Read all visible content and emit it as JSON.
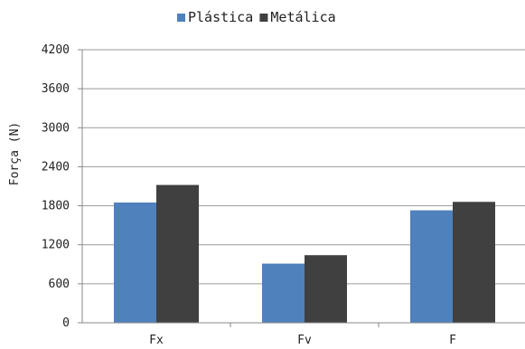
{
  "chart_data": {
    "type": "bar",
    "title": "",
    "xlabel": "",
    "ylabel": "Força (N)",
    "categories": [
      "Fx",
      "Fv",
      "F"
    ],
    "series": [
      {
        "name": "Plástica",
        "color": "#4f81bd",
        "values": [
          1850,
          910,
          1730
        ]
      },
      {
        "name": "Metálica",
        "color": "#404040",
        "values": [
          2120,
          1040,
          1860
        ]
      }
    ],
    "ylim": [
      0,
      4200
    ],
    "yticks": [
      0,
      600,
      1200,
      1800,
      2400,
      3000,
      3600,
      4200
    ],
    "grid": "horizontal",
    "legend_position": "top-center"
  }
}
